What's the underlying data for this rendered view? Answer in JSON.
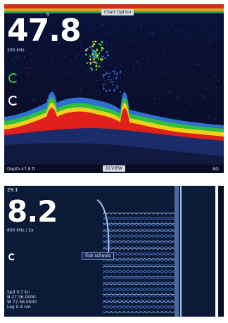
{
  "top_panel": {
    "depth": "47.8",
    "unit_label": "ft",
    "freq_label": "200 kHz",
    "view_tag": "Chart Option",
    "bottom_left": "Depth 47.8 ft",
    "bottom_tag": "DI VIEW",
    "bottom_right": "AD",
    "colors": {
      "strong": "#e0201a",
      "mid": "#f0d018",
      "weak": "#30c040",
      "faint": "#3070d0"
    }
  },
  "bottom_panel": {
    "range_top": "29.1",
    "depth": "8.2",
    "freq_label": "800 kHz / 2x",
    "target_label": "Fish schools",
    "info_lines": [
      "Spd   0.7 kn",
      "N  27.56.0000",
      "W  77.56.0000",
      "Log  0.4 nm"
    ]
  }
}
